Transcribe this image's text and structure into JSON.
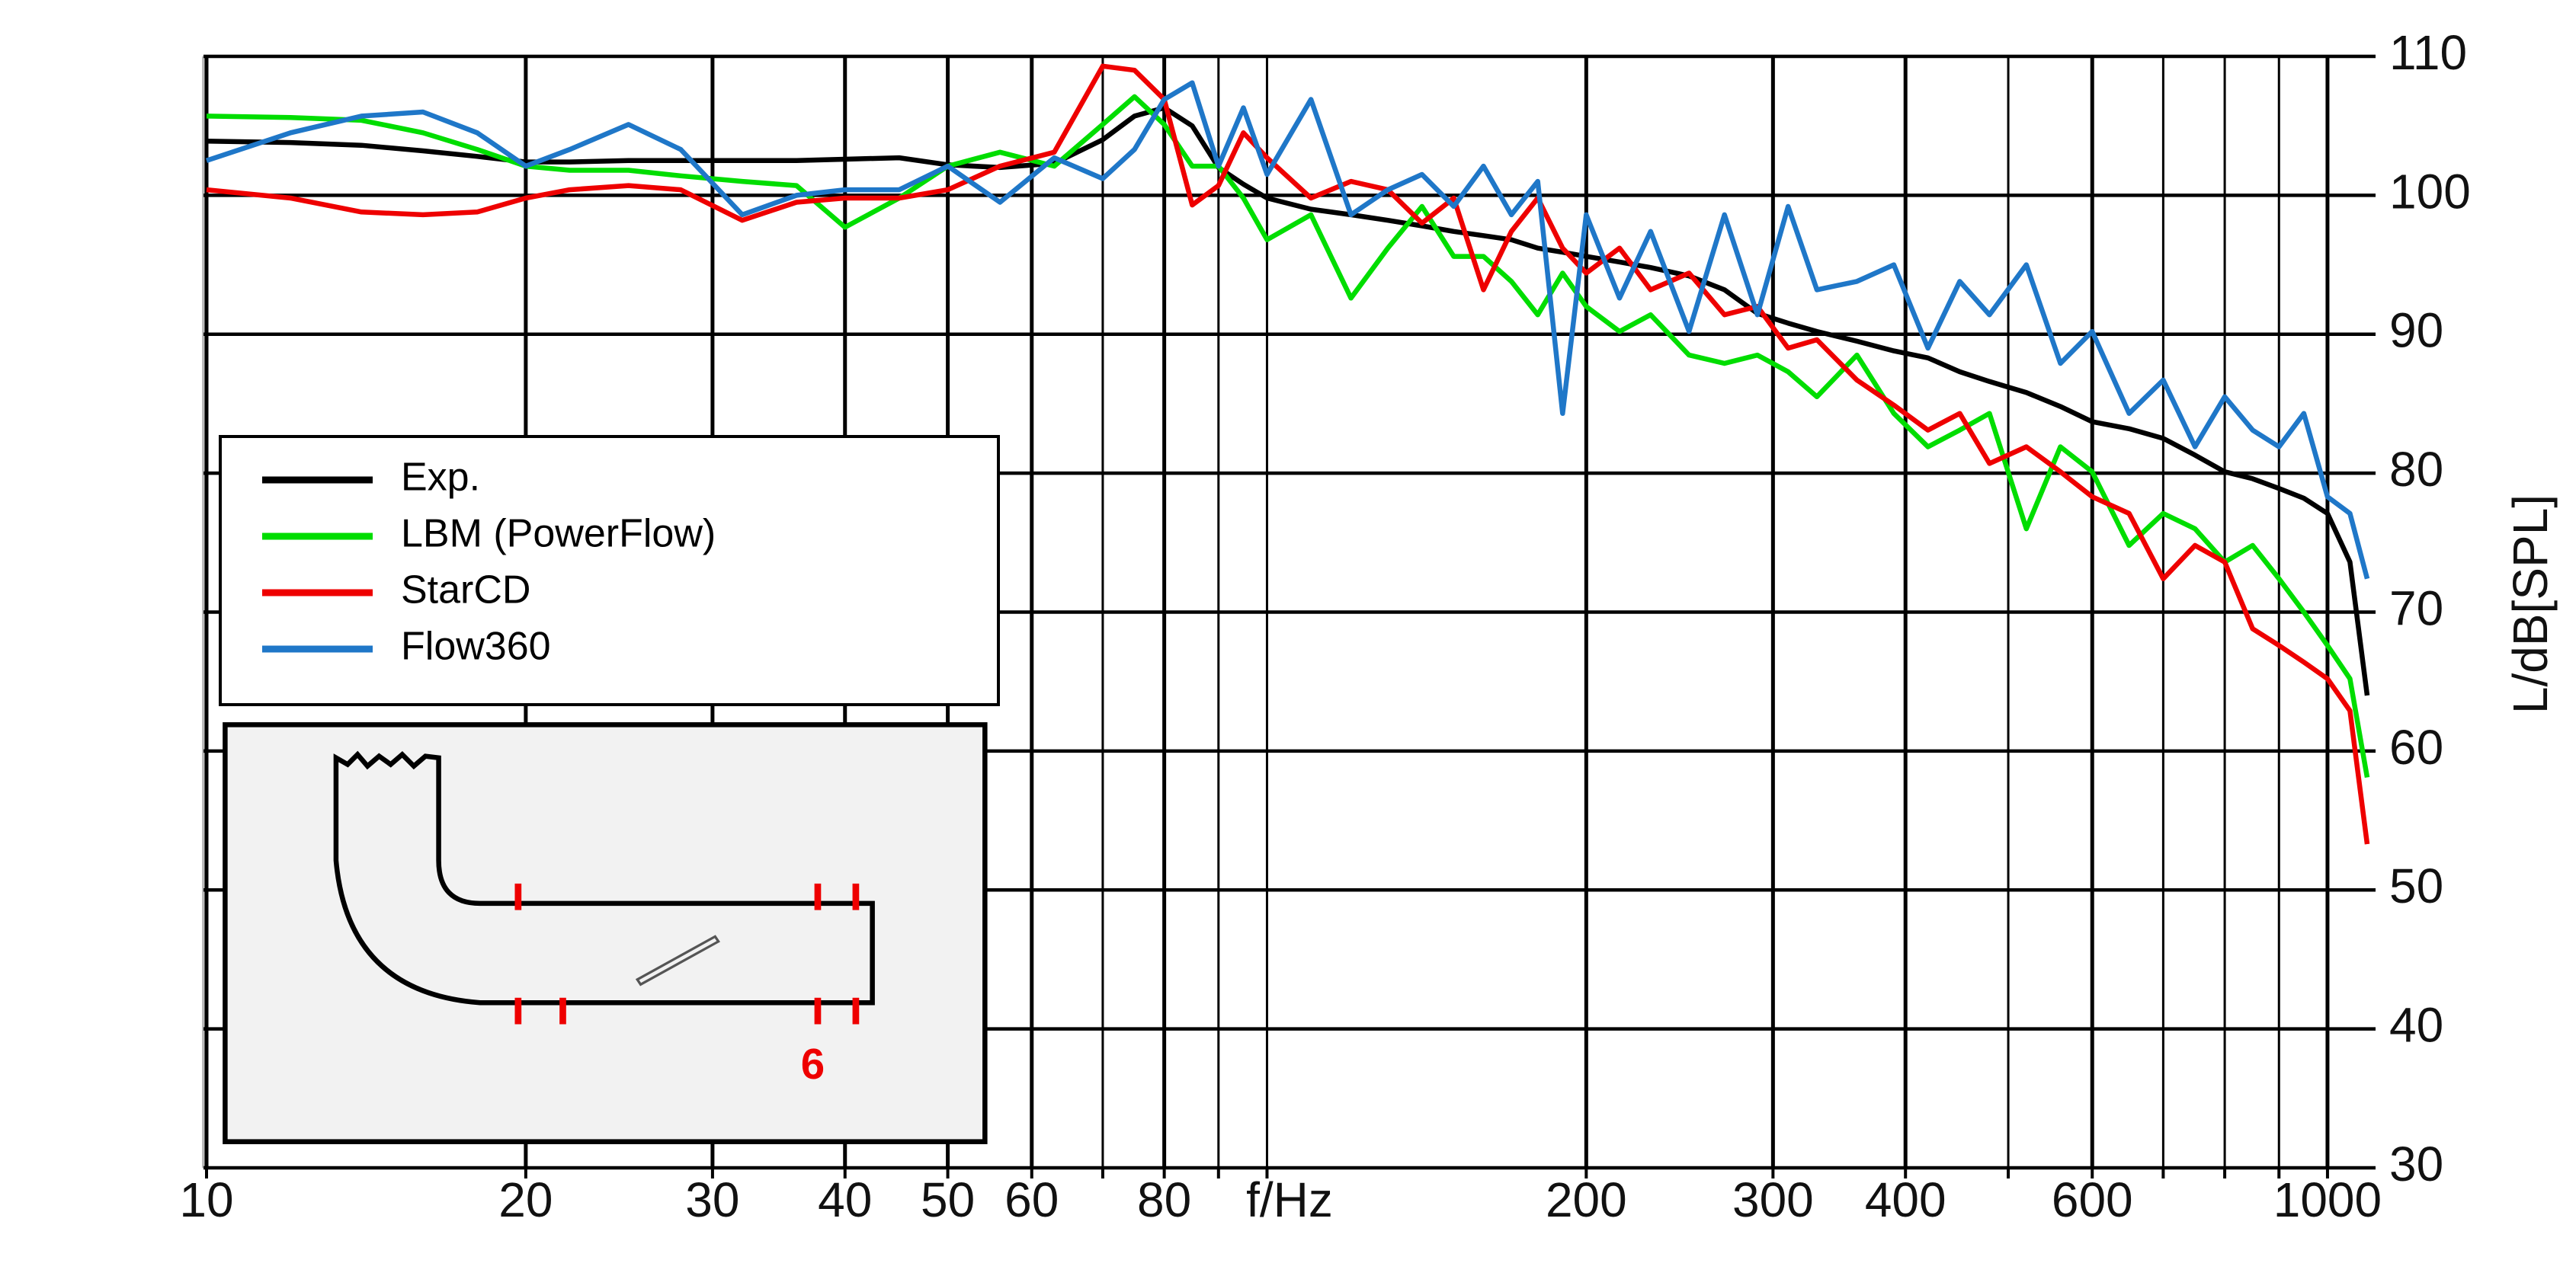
{
  "chart_data": {
    "type": "line",
    "x_label": "f/Hz",
    "y_label": "L/dB[SPL]",
    "annotation": "6",
    "log_x": true,
    "grid": true,
    "legend_position": "left",
    "xlim": [
      10,
      1110
    ],
    "ylim": [
      30,
      110
    ],
    "xticks": [
      10,
      20,
      30,
      40,
      50,
      60,
      {
        "value": 70,
        "label": null
      },
      80,
      {
        "value": 90,
        "label": null
      },
      {
        "value": 100,
        "label": null
      },
      200,
      300,
      400,
      {
        "value": 500,
        "label": null
      },
      600,
      {
        "value": 700,
        "label": null
      },
      {
        "value": 800,
        "label": null
      },
      {
        "value": 900,
        "label": null
      },
      1000
    ],
    "yticks": [
      30,
      40,
      50,
      60,
      70,
      80,
      90,
      100,
      110
    ],
    "x": [
      10,
      12,
      14,
      16,
      18,
      20,
      22,
      25,
      28,
      32,
      36,
      40,
      45,
      50,
      56,
      63,
      70,
      75,
      80,
      85,
      90,
      95,
      100,
      110,
      120,
      130,
      140,
      150,
      160,
      170,
      180,
      190,
      200,
      215,
      230,
      250,
      270,
      290,
      310,
      330,
      360,
      390,
      420,
      450,
      480,
      520,
      560,
      600,
      650,
      700,
      750,
      800,
      850,
      900,
      950,
      1000,
      1050,
      1090
    ],
    "series": [
      {
        "name": "Exp.",
        "color": "#000000",
        "values": [
          103.9,
          103.8,
          103.6,
          103.2,
          102.8,
          102.4,
          102.4,
          102.5,
          102.5,
          102.5,
          102.5,
          102.6,
          102.7,
          102.2,
          102.0,
          102.3,
          104.0,
          105.7,
          106.3,
          105.0,
          102.0,
          100.8,
          99.8,
          99.0,
          98.6,
          98.2,
          97.8,
          97.4,
          97.1,
          96.8,
          96.2,
          95.9,
          95.6,
          95.2,
          94.8,
          94.2,
          93.2,
          91.5,
          90.8,
          90.2,
          89.5,
          88.8,
          88.3,
          87.3,
          86.6,
          85.8,
          84.8,
          83.7,
          83.2,
          82.5,
          81.3,
          80.1,
          79.6,
          78.9,
          78.2,
          77.1,
          73.6,
          64.0
        ]
      },
      {
        "name": "LBM (PowerFlow)",
        "color": "#00dd00",
        "values": [
          105.7,
          105.6,
          105.4,
          104.5,
          103.3,
          102.1,
          101.8,
          101.8,
          101.4,
          101.0,
          100.7,
          97.7,
          99.8,
          102.1,
          103.1,
          102.1,
          105.1,
          107.1,
          105.1,
          102.1,
          102.1,
          99.8,
          96.8,
          98.6,
          92.6,
          96.2,
          99.2,
          95.6,
          95.6,
          93.8,
          91.4,
          94.4,
          92.0,
          90.2,
          91.4,
          88.5,
          87.9,
          88.5,
          87.3,
          85.5,
          88.5,
          84.3,
          81.9,
          83.1,
          84.3,
          76.0,
          81.9,
          80.1,
          74.8,
          77.1,
          76.0,
          73.6,
          74.8,
          72.4,
          70.0,
          67.6,
          65.2,
          58.1
        ]
      },
      {
        "name": "StarCD",
        "color": "#ee0000",
        "values": [
          100.4,
          99.8,
          98.8,
          98.6,
          98.8,
          99.8,
          100.4,
          100.7,
          100.4,
          98.2,
          99.5,
          99.8,
          99.8,
          100.4,
          102.1,
          103.1,
          109.3,
          109.0,
          106.9,
          99.3,
          100.7,
          104.5,
          102.7,
          99.8,
          101.0,
          100.4,
          98.0,
          99.8,
          93.2,
          97.4,
          99.8,
          96.2,
          94.4,
          96.2,
          93.2,
          94.4,
          91.4,
          92.0,
          89.0,
          89.6,
          86.7,
          84.9,
          83.1,
          84.3,
          80.7,
          81.9,
          80.1,
          78.3,
          77.1,
          72.4,
          74.8,
          73.6,
          68.8,
          67.6,
          66.4,
          65.2,
          62.9,
          53.3
        ]
      },
      {
        "name": "Flow360",
        "color": "#1f77c8",
        "values": [
          102.5,
          104.5,
          105.7,
          106.0,
          104.5,
          102.1,
          103.3,
          105.1,
          103.3,
          98.6,
          100.0,
          100.4,
          100.4,
          102.1,
          99.5,
          102.7,
          101.2,
          103.3,
          106.9,
          108.1,
          102.1,
          106.3,
          101.5,
          106.9,
          98.6,
          100.4,
          101.5,
          99.2,
          102.1,
          98.6,
          101.0,
          84.3,
          98.6,
          92.6,
          97.4,
          90.2,
          98.6,
          91.4,
          99.2,
          93.2,
          93.8,
          95.0,
          89.0,
          93.8,
          91.4,
          95.0,
          87.9,
          90.2,
          84.3,
          86.7,
          81.9,
          85.5,
          83.1,
          81.9,
          84.3,
          78.3,
          77.1,
          72.4
        ]
      }
    ]
  }
}
